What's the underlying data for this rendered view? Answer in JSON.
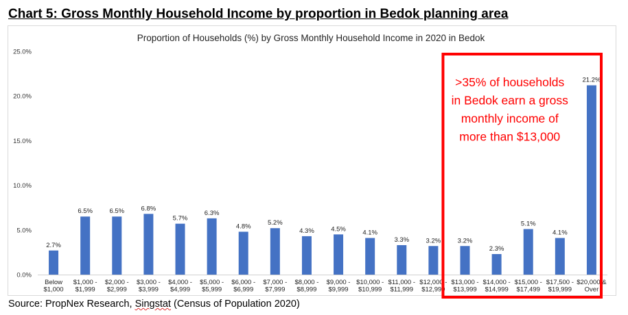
{
  "heading": "Chart 5: Gross Monthly Household Income by proportion in Bedok planning area",
  "source": {
    "prefix": "Source: PropNex Research, ",
    "flagged_word": "Singstat",
    "suffix": " (Census of Population 2020)"
  },
  "chart_data": {
    "type": "bar",
    "title": "Proportion of Households (%) by Gross Monthly Household Income in 2020 in Bedok",
    "xlabel": "",
    "ylabel": "",
    "ylim": [
      0,
      25
    ],
    "yticks": [
      "0.0%",
      "5.0%",
      "10.0%",
      "15.0%",
      "20.0%",
      "25.0%"
    ],
    "grid": false,
    "categories": [
      [
        "Below",
        "$1,000"
      ],
      [
        "$1,000 -",
        "$1,999"
      ],
      [
        "$2,000 -",
        "$2,999"
      ],
      [
        "$3,000 -",
        "$3,999"
      ],
      [
        "$4,000 -",
        "$4,999"
      ],
      [
        "$5,000 -",
        "$5,999"
      ],
      [
        "$6,000 -",
        "$6,999"
      ],
      [
        "$7,000 -",
        "$7,999"
      ],
      [
        "$8,000 -",
        "$8,999"
      ],
      [
        "$9,000 -",
        "$9,999"
      ],
      [
        "$10,000 -",
        "$10,999"
      ],
      [
        "$11,000 -",
        "$11,999"
      ],
      [
        "$12,000 -",
        "$12,999"
      ],
      [
        "$13,000 -",
        "$13,999"
      ],
      [
        "$14,000 -",
        "$14,999"
      ],
      [
        "$15,000 -",
        "$17,499"
      ],
      [
        "$17,500 -",
        "$19,999"
      ],
      [
        "$20,000 &",
        "Over"
      ]
    ],
    "values": [
      2.7,
      6.5,
      6.5,
      6.8,
      5.7,
      6.3,
      4.8,
      5.2,
      4.3,
      4.5,
      4.1,
      3.3,
      3.2,
      3.2,
      2.3,
      5.1,
      4.1,
      21.2
    ],
    "value_labels": [
      "2.7%",
      "6.5%",
      "6.5%",
      "6.8%",
      "5.7%",
      "6.3%",
      "4.8%",
      "5.2%",
      "4.3%",
      "4.5%",
      "4.1%",
      "3.3%",
      "3.2%",
      "3.2%",
      "2.3%",
      "5.1%",
      "4.1%",
      "21.2%"
    ],
    "bar_color": "#4472c4",
    "annotation": {
      "lines": [
        ">35% of households",
        "in Bedok earn a gross",
        "monthly income of",
        "more than $13,000"
      ],
      "color": "#ff0000",
      "highlight_from_category": 13,
      "highlight_to_category": 17
    }
  }
}
